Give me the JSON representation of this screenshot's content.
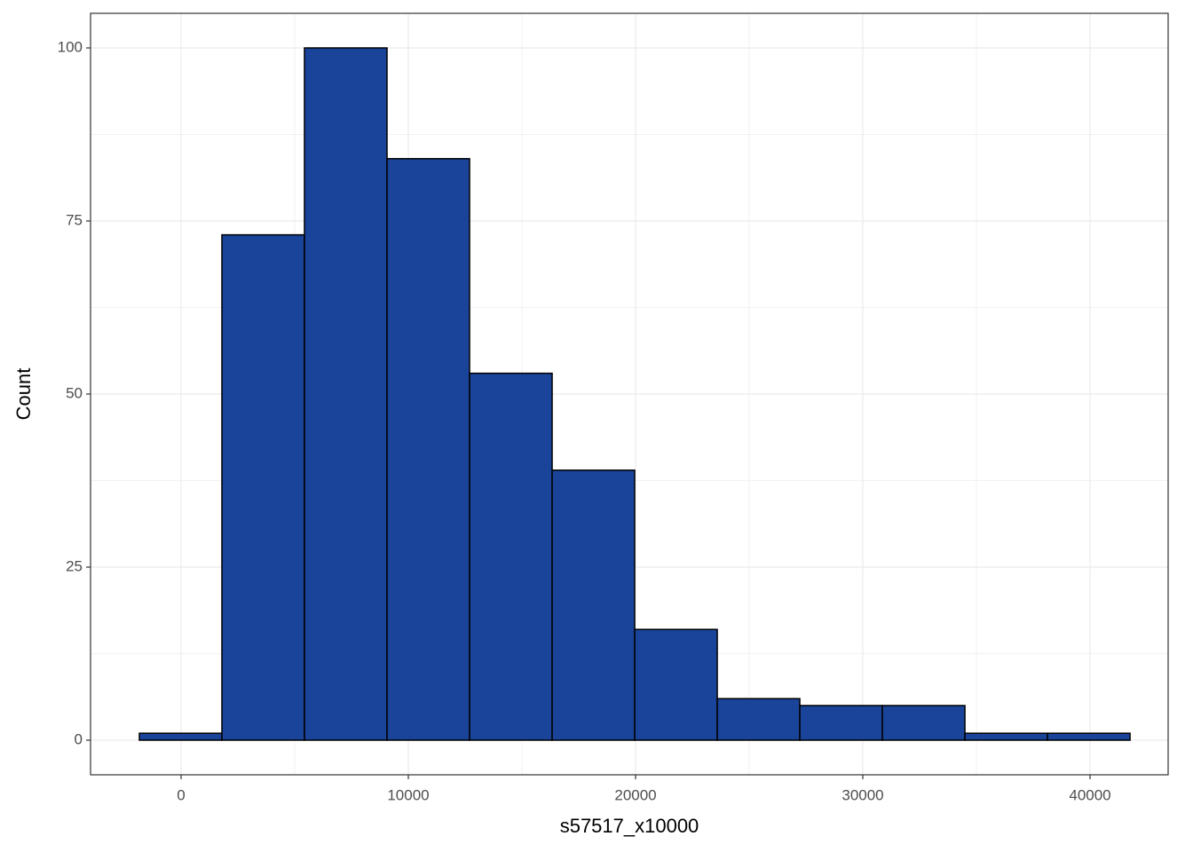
{
  "chart_data": {
    "type": "histogram",
    "x_label": "s57517_x10000",
    "y_label": "Count",
    "bins": [
      -1836,
      1797,
      5430,
      9063,
      12696,
      16329,
      19962,
      23595,
      27228,
      30861,
      34494,
      38127,
      41760
    ],
    "counts": [
      1,
      73,
      100,
      84,
      53,
      39,
      16,
      6,
      5,
      5,
      1,
      1
    ],
    "color": "#1a4499",
    "edge_color": "#000000",
    "xlim": [
      -3984,
      43437
    ],
    "xticks": [
      0,
      10000,
      20000,
      30000,
      40000
    ],
    "ylim": [
      -5,
      105
    ],
    "yticks": [
      0,
      25,
      50,
      75,
      100
    ],
    "grid": true
  }
}
